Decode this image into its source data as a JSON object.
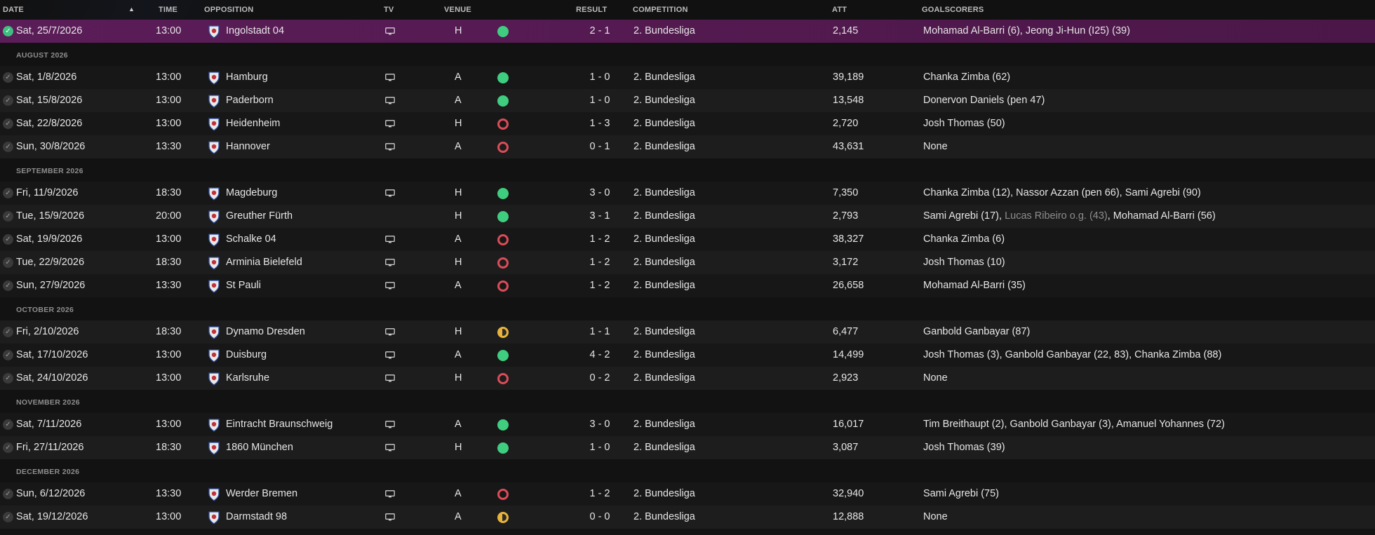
{
  "headers": {
    "date": "DATE",
    "time": "TIME",
    "opposition": "OPPOSITION",
    "tv": "TV",
    "venue": "VENUE",
    "result": "RESULT",
    "competition": "COMPETITION",
    "att": "ATT",
    "goalscorers": "GOALSCORERS"
  },
  "colors": {
    "win": "#3fcd7f",
    "loss": "#d94c58",
    "draw": "#e8b33a",
    "selected_row": "#5b1d58"
  },
  "rows": [
    {
      "kind": "match",
      "selected": true,
      "date": "Sat, 25/7/2026",
      "time": "13:00",
      "opp": "Ingolstadt 04",
      "crest": "ingolstadt-crest",
      "tv": true,
      "venue": "H",
      "outcome": "win",
      "result": "2 - 1",
      "comp": "2. Bundesliga",
      "att": "2,145",
      "scorers": "Mohamad Al-Barri (6), Jeong Ji-Hun (I25) (39)"
    },
    {
      "kind": "group",
      "label": "AUGUST 2026"
    },
    {
      "kind": "match",
      "date": "Sat, 1/8/2026",
      "time": "13:00",
      "opp": "Hamburg",
      "crest": "hamburg-crest",
      "tv": true,
      "venue": "A",
      "outcome": "win",
      "result": "1 - 0",
      "comp": "2. Bundesliga",
      "att": "39,189",
      "scorers": "Chanka Zimba (62)"
    },
    {
      "kind": "match",
      "date": "Sat, 15/8/2026",
      "time": "13:00",
      "opp": "Paderborn",
      "crest": "paderborn-crest",
      "tv": true,
      "venue": "A",
      "outcome": "win",
      "result": "1 - 0",
      "comp": "2. Bundesliga",
      "att": "13,548",
      "scorers": "Donervon Daniels (pen 47)"
    },
    {
      "kind": "match",
      "date": "Sat, 22/8/2026",
      "time": "13:00",
      "opp": "Heidenheim",
      "crest": "heidenheim-crest",
      "tv": true,
      "venue": "H",
      "outcome": "loss",
      "result": "1 - 3",
      "comp": "2. Bundesliga",
      "att": "2,720",
      "scorers": "Josh Thomas (50)"
    },
    {
      "kind": "match",
      "date": "Sun, 30/8/2026",
      "time": "13:30",
      "opp": "Hannover",
      "crest": "hannover-crest",
      "tv": true,
      "venue": "A",
      "outcome": "loss",
      "result": "0 - 1",
      "comp": "2. Bundesliga",
      "att": "43,631",
      "scorers": "None"
    },
    {
      "kind": "group",
      "label": "SEPTEMBER 2026"
    },
    {
      "kind": "match",
      "date": "Fri, 11/9/2026",
      "time": "18:30",
      "opp": "Magdeburg",
      "crest": "magdeburg-crest",
      "tv": true,
      "venue": "H",
      "outcome": "win",
      "result": "3 - 0",
      "comp": "2. Bundesliga",
      "att": "7,350",
      "scorers": "Chanka Zimba (12), Nassor Azzan (pen 66), Sami Agrebi (90)"
    },
    {
      "kind": "match",
      "date": "Tue, 15/9/2026",
      "time": "20:00",
      "opp": "Greuther Fürth",
      "crest": "greuther-furth-crest",
      "tv": false,
      "venue": "H",
      "outcome": "win",
      "result": "3 - 1",
      "comp": "2. Bundesliga",
      "att": "2,793",
      "scorers": "Sami Agrebi (17), ",
      "scorers_og": "Lucas Ribeiro o.g. (43)",
      "scorers_tail": ", Mohamad Al-Barri (56)"
    },
    {
      "kind": "match",
      "date": "Sat, 19/9/2026",
      "time": "13:00",
      "opp": "Schalke 04",
      "crest": "schalke-crest",
      "tv": true,
      "venue": "A",
      "outcome": "loss",
      "result": "1 - 2",
      "comp": "2. Bundesliga",
      "att": "38,327",
      "scorers": "Chanka Zimba (6)"
    },
    {
      "kind": "match",
      "date": "Tue, 22/9/2026",
      "time": "18:30",
      "opp": "Arminia Bielefeld",
      "crest": "bielefeld-crest",
      "tv": true,
      "venue": "H",
      "outcome": "loss",
      "result": "1 - 2",
      "comp": "2. Bundesliga",
      "att": "3,172",
      "scorers": "Josh Thomas (10)"
    },
    {
      "kind": "match",
      "date": "Sun, 27/9/2026",
      "time": "13:30",
      "opp": "St Pauli",
      "crest": "st-pauli-crest",
      "tv": true,
      "venue": "A",
      "outcome": "loss",
      "result": "1 - 2",
      "comp": "2. Bundesliga",
      "att": "26,658",
      "scorers": "Mohamad Al-Barri (35)"
    },
    {
      "kind": "group",
      "label": "OCTOBER 2026"
    },
    {
      "kind": "match",
      "date": "Fri, 2/10/2026",
      "time": "18:30",
      "opp": "Dynamo Dresden",
      "crest": "dresden-crest",
      "tv": true,
      "venue": "H",
      "outcome": "draw",
      "result": "1 - 1",
      "comp": "2. Bundesliga",
      "att": "6,477",
      "scorers": "Ganbold Ganbayar (87)"
    },
    {
      "kind": "match",
      "date": "Sat, 17/10/2026",
      "time": "13:00",
      "opp": "Duisburg",
      "crest": "duisburg-crest",
      "tv": true,
      "venue": "A",
      "outcome": "win",
      "result": "4 - 2",
      "comp": "2. Bundesliga",
      "att": "14,499",
      "scorers": "Josh Thomas (3), Ganbold Ganbayar (22, 83), Chanka Zimba (88)"
    },
    {
      "kind": "match",
      "date": "Sat, 24/10/2026",
      "time": "13:00",
      "opp": "Karlsruhe",
      "crest": "karlsruhe-crest",
      "tv": true,
      "venue": "H",
      "outcome": "loss",
      "result": "0 - 2",
      "comp": "2. Bundesliga",
      "att": "2,923",
      "scorers": "None"
    },
    {
      "kind": "group",
      "label": "NOVEMBER 2026"
    },
    {
      "kind": "match",
      "date": "Sat, 7/11/2026",
      "time": "13:00",
      "opp": "Eintracht Braunschweig",
      "crest": "braunschweig-crest",
      "tv": true,
      "venue": "A",
      "outcome": "win",
      "result": "3 - 0",
      "comp": "2. Bundesliga",
      "att": "16,017",
      "scorers": "Tim Breithaupt (2), Ganbold Ganbayar (3), Amanuel Yohannes (72)"
    },
    {
      "kind": "match",
      "date": "Fri, 27/11/2026",
      "time": "18:30",
      "opp": "1860 München",
      "crest": "1860-munchen-crest",
      "tv": true,
      "venue": "H",
      "outcome": "win",
      "result": "1 - 0",
      "comp": "2. Bundesliga",
      "att": "3,087",
      "scorers": "Josh Thomas (39)"
    },
    {
      "kind": "group",
      "label": "DECEMBER 2026"
    },
    {
      "kind": "match",
      "date": "Sun, 6/12/2026",
      "time": "13:30",
      "opp": "Werder Bremen",
      "crest": "werder-bremen-crest",
      "tv": true,
      "venue": "A",
      "outcome": "loss",
      "result": "1 - 2",
      "comp": "2. Bundesliga",
      "att": "32,940",
      "scorers": "Sami Agrebi (75)"
    },
    {
      "kind": "match",
      "date": "Sat, 19/12/2026",
      "time": "13:00",
      "opp": "Darmstadt 98",
      "crest": "darmstadt-crest",
      "tv": true,
      "venue": "A",
      "outcome": "draw",
      "result": "0 - 0",
      "comp": "2. Bundesliga",
      "att": "12,888",
      "scorers": "None"
    }
  ]
}
